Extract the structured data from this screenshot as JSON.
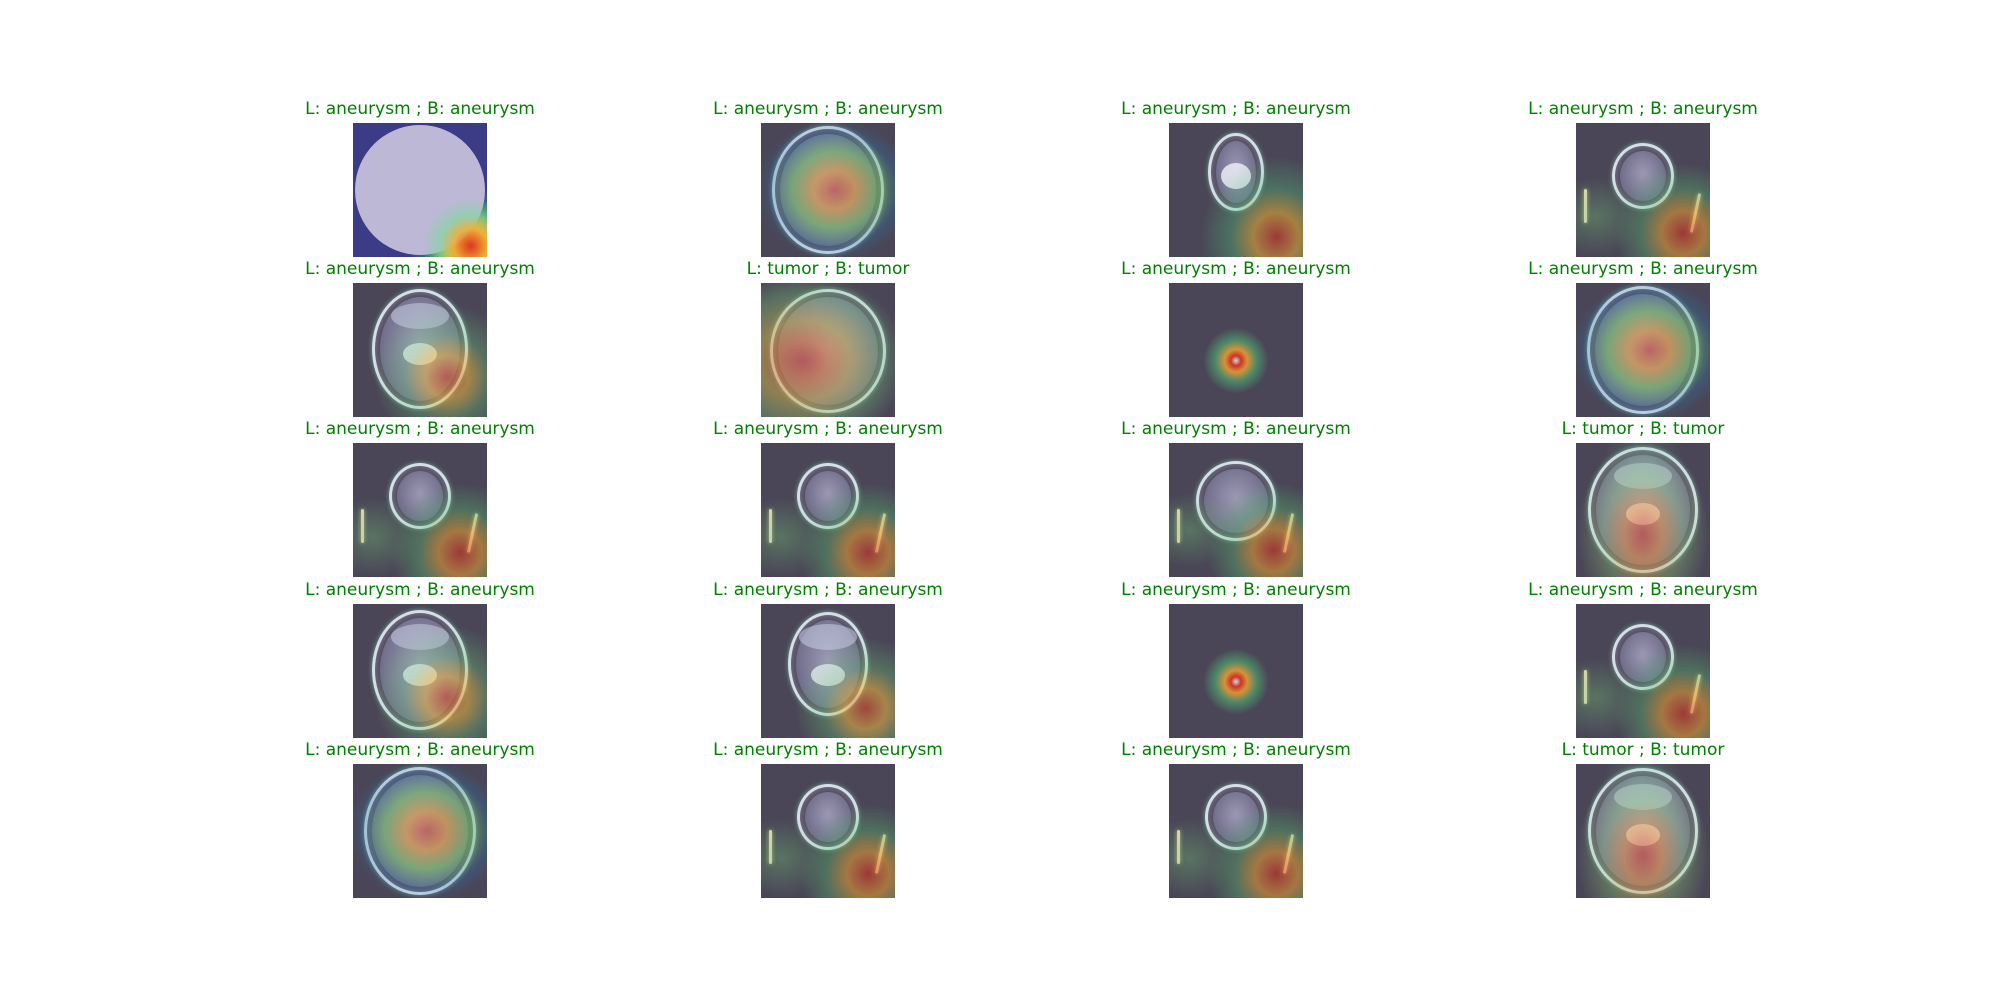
{
  "caption_color": "#008000",
  "panels": [
    {
      "caption": "L: aneurysm ; B: aneurysm",
      "kind": "disk"
    },
    {
      "caption": "L: aneurysm ; B: aneurysm",
      "kind": "brain-large"
    },
    {
      "caption": "L: aneurysm ; B: aneurysm",
      "kind": "face-bone"
    },
    {
      "caption": "L: aneurysm ; B: aneurysm",
      "kind": "small-head"
    },
    {
      "caption": "L: aneurysm ; B: aneurysm",
      "kind": "skull-base"
    },
    {
      "caption": "L: tumor ; B: tumor",
      "kind": "tumor-head"
    },
    {
      "caption": "L: aneurysm ; B: aneurysm",
      "kind": "dot"
    },
    {
      "caption": "L: aneurysm ; B: aneurysm",
      "kind": "brain-large"
    },
    {
      "caption": "L: aneurysm ; B: aneurysm",
      "kind": "small-head"
    },
    {
      "caption": "L: aneurysm ; B: aneurysm",
      "kind": "small-head"
    },
    {
      "caption": "L: aneurysm ; B: aneurysm",
      "kind": "medium-head"
    },
    {
      "caption": "L: tumor ; B: tumor",
      "kind": "tumor-base"
    },
    {
      "caption": "L: aneurysm ; B: aneurysm",
      "kind": "skull-base"
    },
    {
      "caption": "L: aneurysm ; B: aneurysm",
      "kind": "skull-base-small"
    },
    {
      "caption": "L: aneurysm ; B: aneurysm",
      "kind": "dot"
    },
    {
      "caption": "L: aneurysm ; B: aneurysm",
      "kind": "small-head"
    },
    {
      "caption": "L: aneurysm ; B: aneurysm",
      "kind": "brain-large"
    },
    {
      "caption": "L: aneurysm ; B: aneurysm",
      "kind": "small-head"
    },
    {
      "caption": "L: aneurysm ; B: aneurysm",
      "kind": "small-head"
    },
    {
      "caption": "L: tumor ; B: tumor",
      "kind": "tumor-base"
    }
  ]
}
